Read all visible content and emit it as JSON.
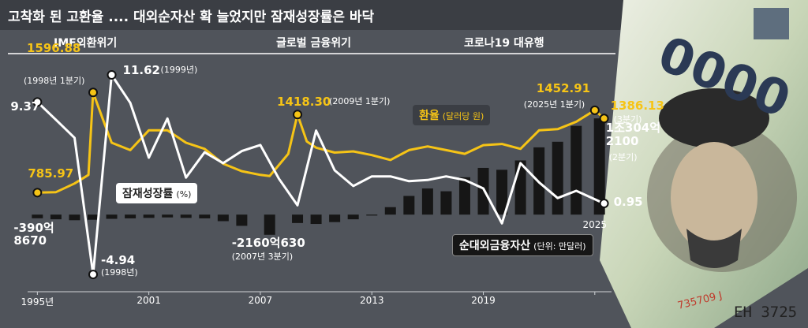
{
  "title": "고착화 된 고환율 .... 대외순자산 확 늘었지만 잠재성장률은 바닥",
  "events": [
    "IMF외환위기",
    "글로벌 금융위기",
    "코로나19 대유행"
  ],
  "banknote": {
    "denomination": "0000",
    "serial": "EH 3725",
    "serial_vertical": "735709 J"
  },
  "chart_data": [
    {
      "type": "bar",
      "name": "순대외금융자산",
      "unit": "(단위: 만달러)",
      "color": "#161616",
      "x": [
        1995,
        1996,
        1997,
        1998,
        1999,
        2000,
        2001,
        2002,
        2003,
        2004,
        2005,
        2006,
        2007.5,
        2009,
        2010,
        2011,
        2012,
        2013,
        2014,
        2015,
        2016,
        2017,
        2018,
        2019,
        2020,
        2021,
        2022,
        2023,
        2024,
        2025.25
      ],
      "values": [
        -3908670,
        -5000000,
        -6000000,
        -5500000,
        -4500000,
        -4000000,
        -3500000,
        -3000000,
        -3500000,
        -4000000,
        -7000000,
        -12000000,
        -21600630,
        -9000000,
        -10000000,
        -8000000,
        -5000000,
        -1000000,
        8000000,
        20000000,
        28000000,
        25000000,
        40000000,
        50000000,
        48000000,
        58000000,
        72000000,
        78000000,
        95000000,
        103042100
      ],
      "value_labels": [
        "-390억\n8670",
        null,
        null,
        null,
        null,
        null,
        null,
        null,
        null,
        null,
        null,
        null,
        "-2160억630",
        null,
        null,
        null,
        null,
        null,
        null,
        null,
        null,
        null,
        null,
        null,
        null,
        null,
        null,
        null,
        null,
        "1조304억\n2100"
      ],
      "notes": [
        null,
        null,
        null,
        null,
        null,
        null,
        null,
        null,
        null,
        null,
        null,
        null,
        "(2007년 3분기)",
        null,
        null,
        null,
        null,
        null,
        null,
        null,
        null,
        null,
        null,
        null,
        null,
        null,
        null,
        null,
        null,
        "(2분기)"
      ],
      "xlim": [
        1994.9,
        2025.9
      ],
      "ylim": [
        -91000000,
        196000000
      ],
      "xticks": [
        {
          "value": 1995,
          "label": "1995년"
        },
        2001,
        2007,
        2013,
        2019,
        2025
      ]
    },
    {
      "type": "line",
      "name": "환율",
      "unit": "(달러당 원)",
      "color": "#f6c416",
      "x": [
        1995,
        1996,
        1997,
        1997.75,
        1998,
        1998.5,
        1999,
        2000,
        2001,
        2002,
        2003,
        2004,
        2005,
        2006,
        2007,
        2007.5,
        2008.5,
        2009,
        2009.5,
        2010,
        2011,
        2012,
        2013,
        2014,
        2015,
        2016,
        2017,
        2018,
        2019,
        2020,
        2021,
        2022,
        2023,
        2024,
        2025,
        2025.5
      ],
      "values": [
        785.97,
        790,
        860,
        930,
        1596.88,
        1390,
        1190,
        1130,
        1290,
        1290,
        1190,
        1140,
        1020,
        960,
        930,
        920,
        1100,
        1418.3,
        1200,
        1150,
        1110,
        1120,
        1090,
        1050,
        1130,
        1160,
        1130,
        1100,
        1170,
        1180,
        1140,
        1290,
        1300,
        1360,
        1452.91,
        1386.13
      ],
      "value_labels": [
        "785.97",
        null,
        null,
        null,
        "1596.88",
        null,
        null,
        null,
        null,
        null,
        null,
        null,
        null,
        null,
        null,
        null,
        null,
        "1418.30",
        null,
        null,
        null,
        null,
        null,
        null,
        null,
        null,
        null,
        null,
        null,
        null,
        null,
        null,
        null,
        null,
        "1452.91",
        "1386.13"
      ],
      "notes": [
        null,
        null,
        null,
        null,
        "(1998년 1분기)",
        null,
        null,
        null,
        null,
        null,
        null,
        null,
        null,
        null,
        null,
        null,
        null,
        "(2009년 1분기)",
        null,
        null,
        null,
        null,
        null,
        null,
        null,
        null,
        null,
        null,
        null,
        null,
        null,
        null,
        null,
        null,
        "(2025년 1분기)",
        "(3분기)"
      ],
      "xlim": [
        1994.9,
        2025.9
      ],
      "ylim": [
        -80,
        2090
      ]
    },
    {
      "type": "line",
      "name": "잠재성장률",
      "unit": "(%)",
      "color": "#ffffff",
      "x": [
        1995,
        1996,
        1997,
        1998,
        1999,
        2000,
        2001,
        2002,
        2003,
        2004,
        2005,
        2006,
        2007,
        2008,
        2009,
        2010,
        2011,
        2012,
        2013,
        2014,
        2015,
        2016,
        2017,
        2018,
        2019,
        2020,
        2021,
        2022,
        2023,
        2024,
        2025.5
      ],
      "values": [
        9.37,
        7.9,
        6.4,
        -4.94,
        11.62,
        9.3,
        4.75,
        8.0,
        3.1,
        5.2,
        4.3,
        5.3,
        5.8,
        3.0,
        0.8,
        7.0,
        3.7,
        2.4,
        3.2,
        3.2,
        2.8,
        2.9,
        3.2,
        2.9,
        2.2,
        -0.7,
        4.3,
        2.7,
        1.4,
        2.0,
        0.95
      ],
      "value_labels": [
        "9.37",
        null,
        null,
        "-4.94",
        "11.62",
        null,
        null,
        null,
        null,
        null,
        null,
        null,
        null,
        null,
        null,
        null,
        null,
        null,
        null,
        null,
        null,
        null,
        null,
        null,
        null,
        null,
        null,
        null,
        null,
        null,
        "0.95"
      ],
      "notes": [
        null,
        null,
        null,
        "(1998년)",
        "(1999년)",
        null,
        null,
        null,
        null,
        null,
        null,
        null,
        null,
        null,
        null,
        null,
        null,
        null,
        null,
        null,
        null,
        null,
        null,
        null,
        null,
        null,
        null,
        null,
        null,
        null,
        null
      ],
      "xlim": [
        1994.9,
        2025.9
      ],
      "ylim": [
        -7.03,
        15.22
      ]
    }
  ]
}
